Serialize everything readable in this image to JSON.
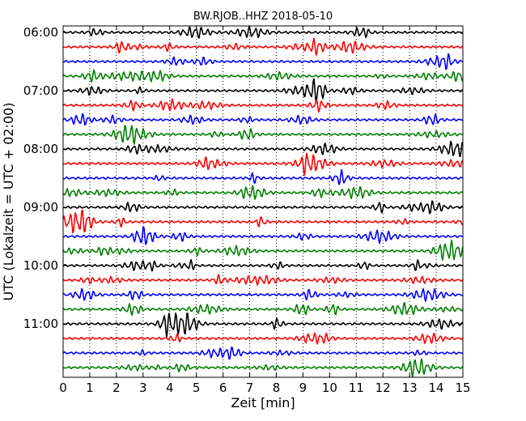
{
  "chart_data": {
    "type": "line",
    "title": "BW.RJOB..HHZ 2018-05-10",
    "xlabel": "Zeit  [min]",
    "ylabel": "UTC (Lokalzeit = UTC + 02:00)",
    "xlim": [
      0,
      15
    ],
    "x_ticks": [
      0,
      1,
      2,
      3,
      4,
      5,
      6,
      7,
      8,
      9,
      10,
      11,
      12,
      13,
      14,
      15
    ],
    "y_tick_labels": [
      "06:00",
      "07:00",
      "08:00",
      "09:00",
      "10:00",
      "11:00"
    ],
    "traces_per_hour": 4,
    "trace_count": 24,
    "trace_colors": [
      "#000000",
      "#ff0000",
      "#0000ff",
      "#008000"
    ],
    "grid": "vertical dotted lines at each minute",
    "legend": "none"
  }
}
